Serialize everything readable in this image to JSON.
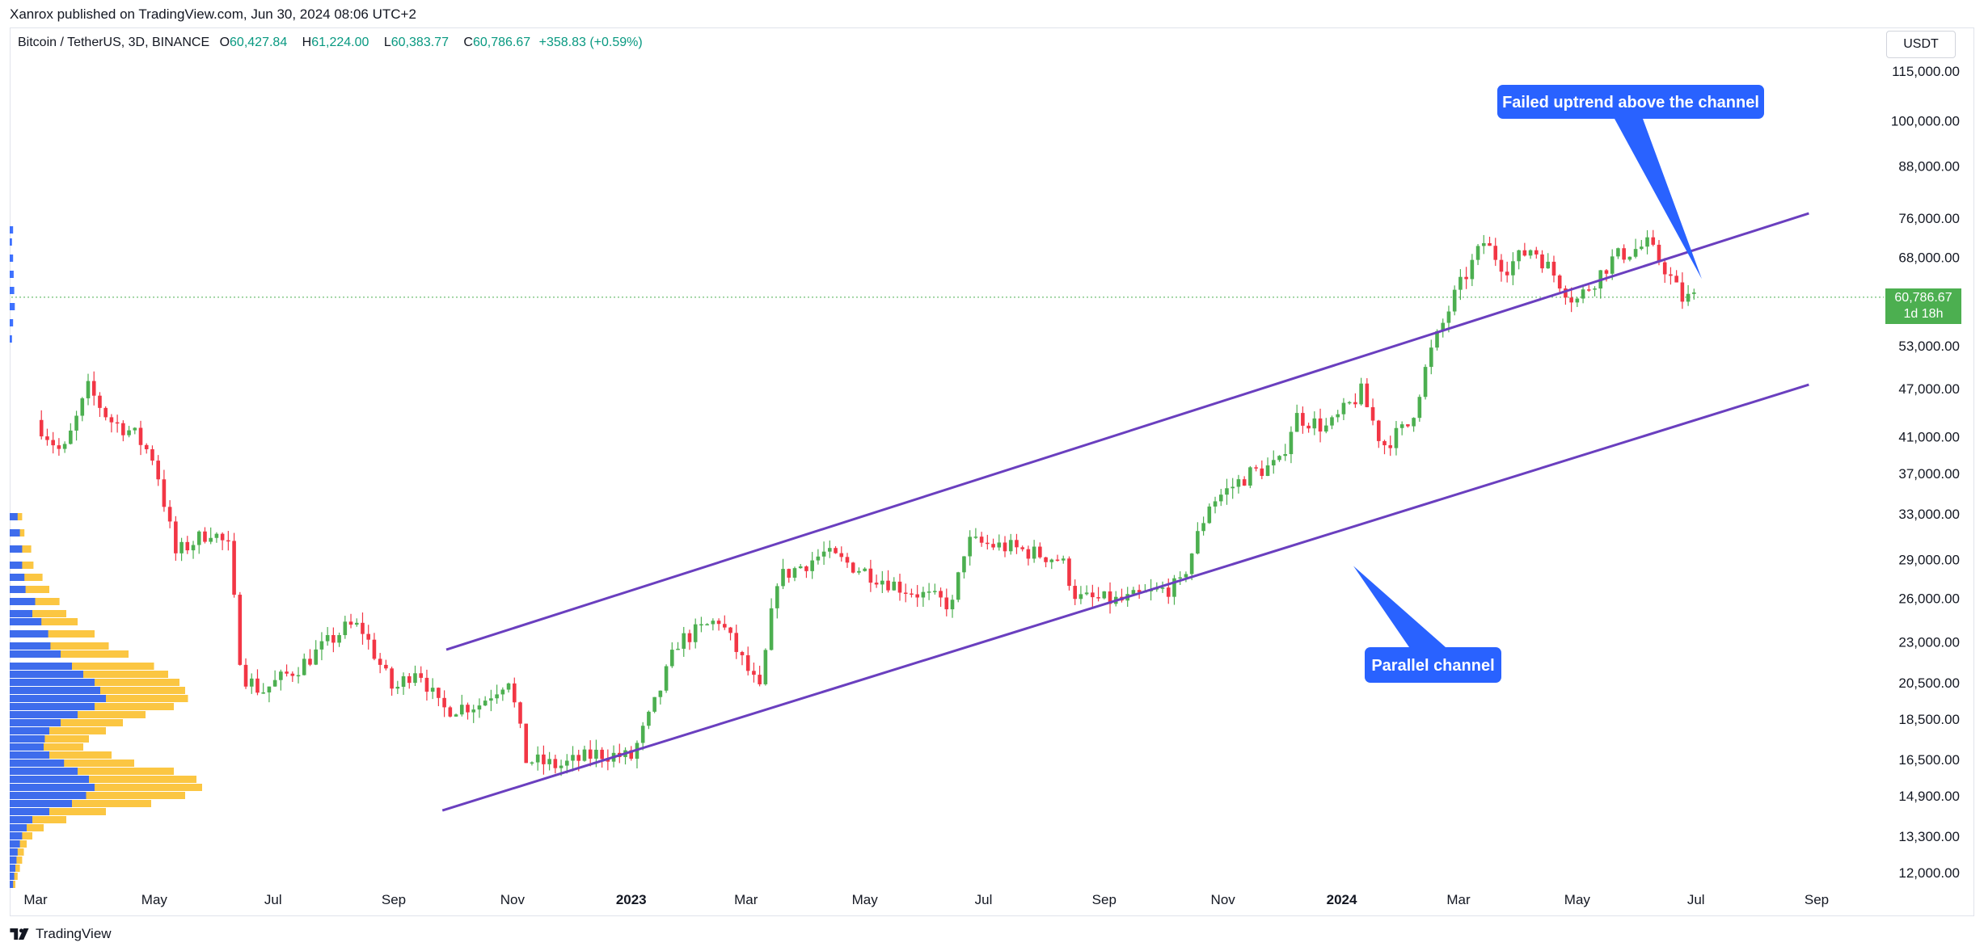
{
  "header": {
    "published": "Xanrox published on TradingView.com, Jun 30, 2024 08:06 UTC+2"
  },
  "legend": {
    "symbol": "Bitcoin / TetherUS, 3D, BINANCE",
    "open_label": "O",
    "open": "60,427.84",
    "high_label": "H",
    "high": "61,224.00",
    "low_label": "L",
    "low": "60,383.77",
    "close_label": "C",
    "close": "60,786.67",
    "change": "+358.83 (+0.59%)"
  },
  "currency": "USDT",
  "last_price": {
    "price": "60,786.67",
    "countdown": "1d 18h"
  },
  "brand": "TradingView",
  "colors": {
    "up": "#4caf50",
    "down": "#f23645",
    "channel": "#6a3fbf",
    "callout": "#2962ff",
    "volume_blue": "#2962ff",
    "volume_yellow": "#fbc02d"
  },
  "chart_data": {
    "type": "candlestick",
    "interval": "3D",
    "y_scale": "log",
    "ylim": [
      11500,
      125000
    ],
    "y_ticks": [
      {
        "value": 115000,
        "label": "115,000.00"
      },
      {
        "value": 100000,
        "label": "100,000.00"
      },
      {
        "value": 88000,
        "label": "88,000.00"
      },
      {
        "value": 76000,
        "label": "76,000.00"
      },
      {
        "value": 68000,
        "label": "68,000.00"
      },
      {
        "value": 53000,
        "label": "53,000.00"
      },
      {
        "value": 47000,
        "label": "47,000.00"
      },
      {
        "value": 41000,
        "label": "41,000.00"
      },
      {
        "value": 37000,
        "label": "37,000.00"
      },
      {
        "value": 33000,
        "label": "33,000.00"
      },
      {
        "value": 29000,
        "label": "29,000.00"
      },
      {
        "value": 26000,
        "label": "26,000.00"
      },
      {
        "value": 23000,
        "label": "23,000.00"
      },
      {
        "value": 20500,
        "label": "20,500.00"
      },
      {
        "value": 18500,
        "label": "18,500.00"
      },
      {
        "value": 16500,
        "label": "16,500.00"
      },
      {
        "value": 14900,
        "label": "14,900.00"
      },
      {
        "value": 13300,
        "label": "13,300.00"
      },
      {
        "value": 12000,
        "label": "12,000.00"
      }
    ],
    "x_ticks": [
      {
        "date": "2022-03",
        "label": "Mar"
      },
      {
        "date": "2022-05",
        "label": "May"
      },
      {
        "date": "2022-07",
        "label": "Jul"
      },
      {
        "date": "2022-09",
        "label": "Sep"
      },
      {
        "date": "2022-11",
        "label": "Nov"
      },
      {
        "date": "2023-01",
        "label": "2023",
        "bold": true
      },
      {
        "date": "2023-03",
        "label": "Mar"
      },
      {
        "date": "2023-05",
        "label": "May"
      },
      {
        "date": "2023-07",
        "label": "Jul"
      },
      {
        "date": "2023-09",
        "label": "Sep"
      },
      {
        "date": "2023-11",
        "label": "Nov"
      },
      {
        "date": "2024-01",
        "label": "2024",
        "bold": true
      },
      {
        "date": "2024-03",
        "label": "Mar"
      },
      {
        "date": "2024-05",
        "label": "May"
      },
      {
        "date": "2024-07",
        "label": "Jul"
      },
      {
        "date": "2024-09",
        "label": "Sep"
      }
    ],
    "close_path": [
      [
        "2022-03-01",
        43000
      ],
      [
        "2022-03-15",
        39000
      ],
      [
        "2022-03-28",
        47000
      ],
      [
        "2022-04-08",
        43000
      ],
      [
        "2022-04-20",
        41500
      ],
      [
        "2022-05-01",
        38500
      ],
      [
        "2022-05-12",
        29500
      ],
      [
        "2022-05-30",
        31500
      ],
      [
        "2022-06-08",
        30000
      ],
      [
        "2022-06-15",
        21000
      ],
      [
        "2022-06-25",
        20000
      ],
      [
        "2022-07-15",
        21500
      ],
      [
        "2022-08-08",
        24000
      ],
      [
        "2022-08-15",
        24000
      ],
      [
        "2022-09-01",
        20000
      ],
      [
        "2022-09-13",
        21500
      ],
      [
        "2022-09-25",
        19000
      ],
      [
        "2022-10-15",
        19300
      ],
      [
        "2022-10-30",
        20800
      ],
      [
        "2022-11-08",
        16500
      ],
      [
        "2022-11-25",
        16200
      ],
      [
        "2022-12-15",
        16800
      ],
      [
        "2023-01-01",
        16600
      ],
      [
        "2023-01-12",
        19000
      ],
      [
        "2023-01-25",
        23000
      ],
      [
        "2023-02-15",
        24500
      ],
      [
        "2023-03-08",
        20000
      ],
      [
        "2023-03-17",
        27500
      ],
      [
        "2023-04-10",
        29500
      ],
      [
        "2023-04-25",
        28500
      ],
      [
        "2023-05-20",
        26800
      ],
      [
        "2023-06-15",
        25500
      ],
      [
        "2023-06-22",
        30500
      ],
      [
        "2023-07-15",
        30000
      ],
      [
        "2023-08-10",
        29000
      ],
      [
        "2023-08-18",
        26000
      ],
      [
        "2023-09-10",
        25800
      ],
      [
        "2023-10-10",
        27000
      ],
      [
        "2023-10-25",
        34000
      ],
      [
        "2023-11-15",
        37000
      ],
      [
        "2023-11-30",
        38000
      ],
      [
        "2023-12-08",
        43500
      ],
      [
        "2023-12-25",
        42000
      ],
      [
        "2024-01-11",
        46500
      ],
      [
        "2024-01-22",
        40000
      ],
      [
        "2024-02-05",
        42500
      ],
      [
        "2024-02-15",
        51500
      ],
      [
        "2024-02-28",
        61000
      ],
      [
        "2024-03-14",
        71000
      ],
      [
        "2024-03-25",
        66000
      ],
      [
        "2024-04-08",
        70000
      ],
      [
        "2024-04-30",
        60000
      ],
      [
        "2024-05-20",
        68000
      ],
      [
        "2024-06-06",
        70500
      ],
      [
        "2024-06-15",
        66000
      ],
      [
        "2024-06-24",
        60500
      ],
      [
        "2024-06-30",
        60786.67
      ]
    ],
    "channel_lines": [
      {
        "name": "upper",
        "from": {
          "date": "2022-09-28",
          "price": 22500
        },
        "to": {
          "date": "2024-08-28",
          "price": 77000
        }
      },
      {
        "name": "lower",
        "from": {
          "date": "2022-09-26",
          "price": 14300
        },
        "to": {
          "date": "2024-08-28",
          "price": 47500
        }
      }
    ],
    "annotations": [
      {
        "text": "Failed uptrend above the channel",
        "arrow_to": {
          "date": "2024-07-04",
          "price": 64000
        }
      },
      {
        "text": "Parallel channel",
        "arrow_to": {
          "date": "2024-01-07",
          "price": 28500
        }
      }
    ],
    "volume_profile": "fixed-range volume profile anchored at left edge (blue = sell, yellow = buy)"
  }
}
